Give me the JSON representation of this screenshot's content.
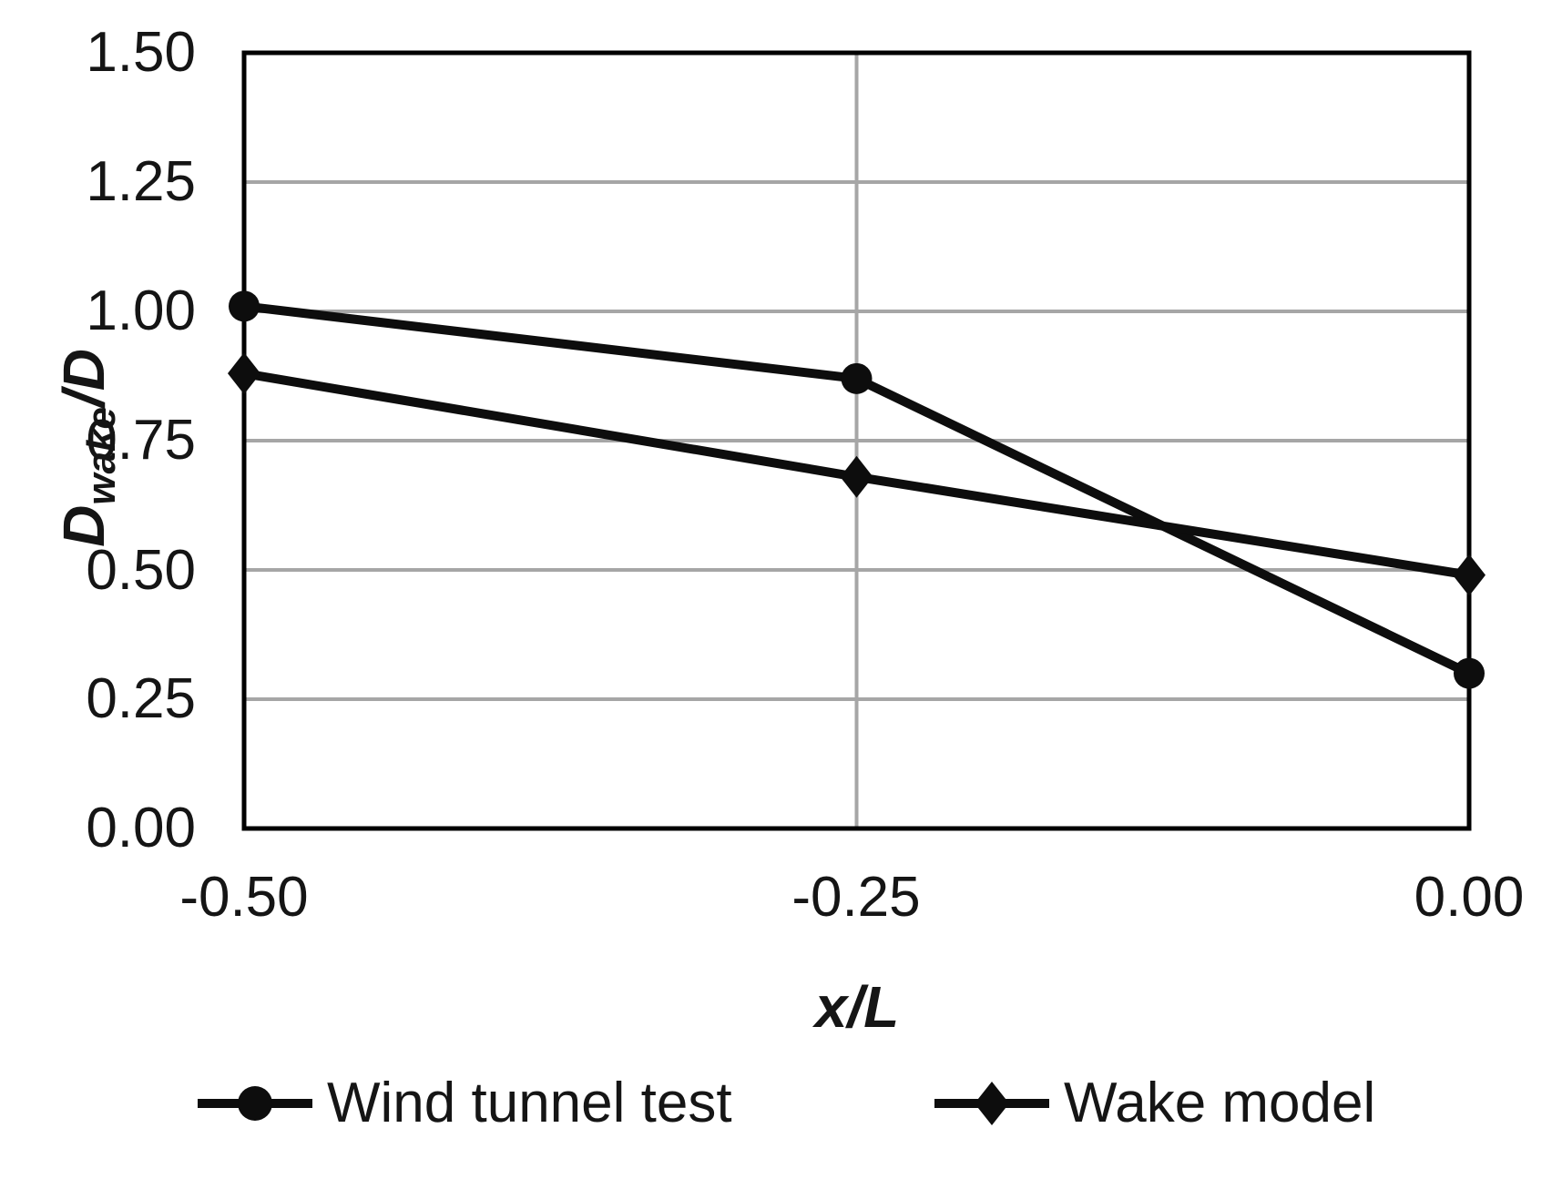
{
  "figure": {
    "background": "#ffffff",
    "text_color": "#151515",
    "grid_color": "#a6a6a6",
    "axis_frame_color": "#000000",
    "series_color": "#0d0d0d"
  },
  "chart_data": {
    "type": "line",
    "title": "",
    "xlabel": "x/L",
    "ylabel": "Dwake/D",
    "ylabel_parts": {
      "base": "D",
      "sub": "wake",
      "rest": "/D"
    },
    "x": [
      -0.5,
      -0.25,
      0
    ],
    "xlim": [
      -0.5,
      0
    ],
    "ylim": [
      0,
      1.5
    ],
    "xtick_values": [
      -0.5,
      -0.25,
      0
    ],
    "xtick_labels": [
      "-0.50",
      "-0.25",
      "0.00"
    ],
    "ytick_values": [
      1.5,
      1.25,
      1.0,
      0.75,
      0.5,
      0.25,
      0
    ],
    "ytick_labels": [
      "1.50",
      "1.25",
      "1.00",
      "0.75",
      "0.50",
      "0.25",
      "0.00"
    ],
    "grid": "on",
    "legend_position": "bottom",
    "series": [
      {
        "name": "Wind tunnel test",
        "marker": "circle",
        "values": [
          1.01,
          0.87,
          0.3
        ]
      },
      {
        "name": "Wake model",
        "marker": "diamond",
        "values": [
          0.88,
          0.68,
          0.49
        ]
      }
    ]
  }
}
